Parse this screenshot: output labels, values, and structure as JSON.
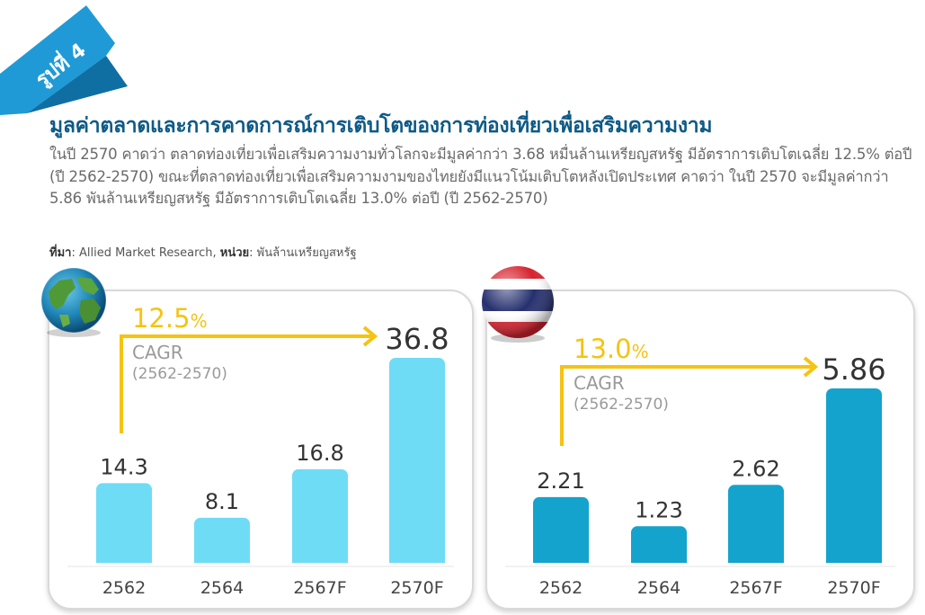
{
  "figure_label": "รูปที่ 4",
  "title": "มูลค่าตลาดและการคาดการณ์การเติบโตของการท่องเที่ยวเพื่อเสริมความงาม",
  "description": "ในปี 2570 คาดว่า ตลาดท่องเที่ยวเพื่อเสริมความงามทั่วโลกจะมีมูลค่ากว่า 3.68 หมื่นล้านเหรียญสหรัฐ มีอัตราการเติบโตเฉลี่ย 12.5% ต่อปี (ปี 2562-2570) ขณะที่ตลาดท่องเที่ยวเพื่อเสริมความงามของไทยยังมีแนวโน้มเติบโตหลังเปิดประเทศ คาดว่า ในปี 2570 จะมีมูลค่ากว่า 5.86 พันล้านเหรียญสหรัฐ มีอัตราการเติบโตเฉลี่ย 13.0% ต่อปี (ปี 2562-2570)",
  "source": {
    "label": "ที่มา",
    "text": ": Allied Market Research, ",
    "unit_label": "หน่วย",
    "unit_text": ": พันล้านเหรียญสหรัฐ"
  },
  "colors": {
    "ribbon": "#1f9ad6",
    "title": "#0e5a86",
    "arrow": "#f5c312",
    "world_bar": "#6fdcf6",
    "thai_bar": "#14a3cc",
    "value_text": "#333333",
    "cagr_text": "#9a9a9a"
  },
  "chart_data": [
    {
      "type": "bar",
      "icon": "globe-icon",
      "categories": [
        "2562",
        "2564",
        "2567F",
        "2570F"
      ],
      "values": [
        14.3,
        8.1,
        16.8,
        36.8
      ],
      "value_labels": [
        "14.3",
        "8.1",
        "16.8",
        "36.8"
      ],
      "ylim": [
        0,
        36.8
      ],
      "cagr": {
        "value": "12.5",
        "unit": "%",
        "label": "CAGR",
        "period": "(2562-2570)"
      }
    },
    {
      "type": "bar",
      "icon": "thai-flag-icon",
      "categories": [
        "2562",
        "2564",
        "2567F",
        "2570F"
      ],
      "values": [
        2.21,
        1.23,
        2.62,
        5.86
      ],
      "value_labels": [
        "2.21",
        "1.23",
        "2.62",
        "5.86"
      ],
      "ylim": [
        0,
        5.86
      ],
      "cagr": {
        "value": "13.0",
        "unit": "%",
        "label": "CAGR",
        "period": "(2562-2570)"
      }
    }
  ]
}
